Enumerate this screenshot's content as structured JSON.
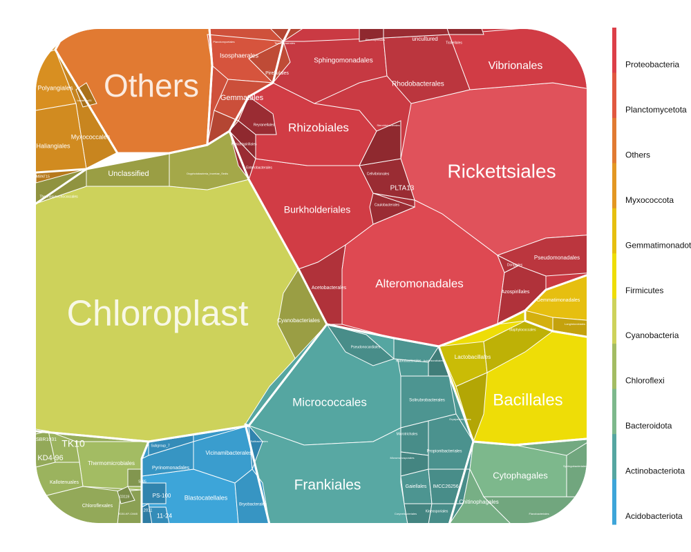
{
  "chart_data": {
    "type": "voronoi-treemap",
    "phyla": [
      {
        "name": "Proteobacteria",
        "color": "#DC3F49"
      },
      {
        "name": "Planctomycetota",
        "color": "#E15840"
      },
      {
        "name": "Others",
        "color": "#E17A32"
      },
      {
        "name": "Myxococcota",
        "color": "#E39723"
      },
      {
        "name": "Gemmatimonadota",
        "color": "#E6BF10"
      },
      {
        "name": "Firmicutes",
        "color": "#EEDD07"
      },
      {
        "name": "Cyanobacteria",
        "color": "#CDD25B"
      },
      {
        "name": "Chloroflexi",
        "color": "#A3BC63"
      },
      {
        "name": "Bacteroidota",
        "color": "#7DB88C"
      },
      {
        "name": "Actinobacteriota",
        "color": "#55A6A1"
      },
      {
        "name": "Acidobacteriota",
        "color": "#3DA5D9"
      }
    ],
    "legend_labels": [
      "Proteobacteria",
      "Planctomycetota",
      "Others",
      "Myxococcota",
      "Gemmatimonadota",
      "Firmicutes",
      "Cyanobacteria",
      "Chloroflexi",
      "Bacteroidota",
      "Actinobacteriota",
      "Acidobacteriota"
    ],
    "legend_position": "right",
    "orders": [
      {
        "label": "Chloroplast",
        "phylum": "Cyanobacteria"
      },
      {
        "label": "Cyanobacteriales",
        "phylum": "Cyanobacteria"
      },
      {
        "label": "Unclassified",
        "phylum": "Cyanobacteria"
      },
      {
        "label": "Thermosynechococcales",
        "phylum": "Cyanobacteria"
      },
      {
        "label": "Oxyphotobacteria_Incertae_Sedis",
        "phylum": "Cyanobacteria"
      },
      {
        "label": "Rickettsiales",
        "phylum": "Proteobacteria"
      },
      {
        "label": "Alteromonadales",
        "phylum": "Proteobacteria"
      },
      {
        "label": "Burkholderiales",
        "phylum": "Proteobacteria"
      },
      {
        "label": "Rhizobiales",
        "phylum": "Proteobacteria"
      },
      {
        "label": "Vibrionales",
        "phylum": "Proteobacteria"
      },
      {
        "label": "Sphingomonadales",
        "phylum": "Proteobacteria"
      },
      {
        "label": "Rhodobacterales",
        "phylum": "Proteobacteria"
      },
      {
        "label": "Pseudomonadales",
        "phylum": "Proteobacteria"
      },
      {
        "label": "Azospirillales",
        "phylum": "Proteobacteria"
      },
      {
        "label": "Acetobacterales",
        "phylum": "Proteobacteria"
      },
      {
        "label": "PLTA13",
        "phylum": "Proteobacteria"
      },
      {
        "label": "Caulobacterales",
        "phylum": "Proteobacteria"
      },
      {
        "label": "Cellvibrionales",
        "phylum": "Proteobacteria"
      },
      {
        "label": "Enterobacterales",
        "phylum": "Proteobacteria"
      },
      {
        "label": "Puniceispirillales",
        "phylum": "Proteobacteria"
      },
      {
        "label": "Reyranellales",
        "phylum": "Proteobacteria"
      },
      {
        "label": "Steroidobacterales",
        "phylum": "Proteobacteria"
      },
      {
        "label": "uncultured",
        "phylum": "Proteobacteria"
      },
      {
        "label": "Tistrellales",
        "phylum": "Proteobacteria"
      },
      {
        "label": "Rhodospirillales",
        "phylum": "Proteobacteria"
      },
      {
        "label": "Dongiales",
        "phylum": "Proteobacteria"
      },
      {
        "label": "Others",
        "phylum": "Others"
      },
      {
        "label": "Isosphaerales",
        "phylum": "Planctomycetota"
      },
      {
        "label": "Pirellulales",
        "phylum": "Planctomycetota"
      },
      {
        "label": "Gemmatales",
        "phylum": "Planctomycetota"
      },
      {
        "label": "Tepidisphaerales",
        "phylum": "Planctomycetota"
      },
      {
        "label": "Planctomycetales",
        "phylum": "Planctomycetota"
      },
      {
        "label": "Polyangiales",
        "phylum": "Myxococcota"
      },
      {
        "label": "Myxococcales",
        "phylum": "Myxococcota"
      },
      {
        "label": "Haliangiales",
        "phylum": "Myxococcota"
      },
      {
        "label": "bacteriap25",
        "phylum": "Myxococcota"
      },
      {
        "label": "MBNT15",
        "phylum": "Myxococcota"
      },
      {
        "label": "Gemmatimonadales",
        "phylum": "Gemmatimonadota"
      },
      {
        "label": "Longimicrobiales",
        "phylum": "Gemmatimonadota"
      },
      {
        "label": "Bacillales",
        "phylum": "Firmicutes"
      },
      {
        "label": "Lactobacillales",
        "phylum": "Firmicutes"
      },
      {
        "label": "Erysipelotrichales",
        "phylum": "Firmicutes"
      },
      {
        "label": "Staphylococcales",
        "phylum": "Firmicutes"
      },
      {
        "label": "Micrococcales",
        "phylum": "Actinobacteriota"
      },
      {
        "label": "Frankiales",
        "phylum": "Actinobacteriota"
      },
      {
        "label": "Pseudonocardiales",
        "phylum": "Actinobacteriota"
      },
      {
        "label": "Rubrobacterales",
        "phylum": "Actinobacteriota"
      },
      {
        "label": "Solirubrobacterales",
        "phylum": "Actinobacteriota"
      },
      {
        "label": "Microtrichales",
        "phylum": "Actinobacteriota"
      },
      {
        "label": "Propionibacteriales",
        "phylum": "Actinobacteriota"
      },
      {
        "label": "Micromonosporales",
        "phylum": "Actinobacteriota"
      },
      {
        "label": "Gaiellales",
        "phylum": "Actinobacteriota"
      },
      {
        "label": "IMCC26256",
        "phylum": "Actinobacteriota"
      },
      {
        "label": "Kineosporiales",
        "phylum": "Actinobacteriota"
      },
      {
        "label": "Corynebacteriales",
        "phylum": "Actinobacteriota"
      },
      {
        "label": "Acidimicrobiales",
        "phylum": "Actinobacteriota"
      },
      {
        "label": "Thermomicrobiales",
        "phylum": "Chloroflexi"
      },
      {
        "label": "TK10",
        "phylum": "Chloroflexi"
      },
      {
        "label": "KD4-96",
        "phylum": "Chloroflexi"
      },
      {
        "label": "SBR1031",
        "phylum": "Chloroflexi"
      },
      {
        "label": "Kallotenuales",
        "phylum": "Chloroflexi"
      },
      {
        "label": "Chloroflexales",
        "phylum": "Chloroflexi"
      },
      {
        "label": "JG30-KF-CM45",
        "phylum": "Chloroflexi"
      },
      {
        "label": "S085",
        "phylum": "Chloroflexi"
      },
      {
        "label": "C0119",
        "phylum": "Chloroflexi"
      },
      {
        "label": "Ardenticatenales",
        "phylum": "Chloroflexi"
      },
      {
        "label": "Cytophagales",
        "phylum": "Bacteroidota"
      },
      {
        "label": "Chitinophagales",
        "phylum": "Bacteroidota"
      },
      {
        "label": "Sphingobacteriales",
        "phylum": "Bacteroidota"
      },
      {
        "label": "Flavobacteriales",
        "phylum": "Bacteroidota"
      },
      {
        "label": "Blastocatellales",
        "phylum": "Acidobacteriota"
      },
      {
        "label": "Vicinamibacterales",
        "phylum": "Acidobacteriota"
      },
      {
        "label": "Pyrinomonadales",
        "phylum": "Acidobacteriota"
      },
      {
        "label": "Bryobacterales",
        "phylum": "Acidobacteriota"
      },
      {
        "label": "Subgroup_7",
        "phylum": "Acidobacteriota"
      },
      {
        "label": "Solibacterales",
        "phylum": "Acidobacteriota"
      },
      {
        "label": "11-24",
        "phylum": "Acidobacteriota"
      },
      {
        "label": "2011",
        "phylum": "Acidobacteriota"
      },
      {
        "label": "PS-100",
        "phylum": "Acidobacteriota"
      }
    ]
  }
}
